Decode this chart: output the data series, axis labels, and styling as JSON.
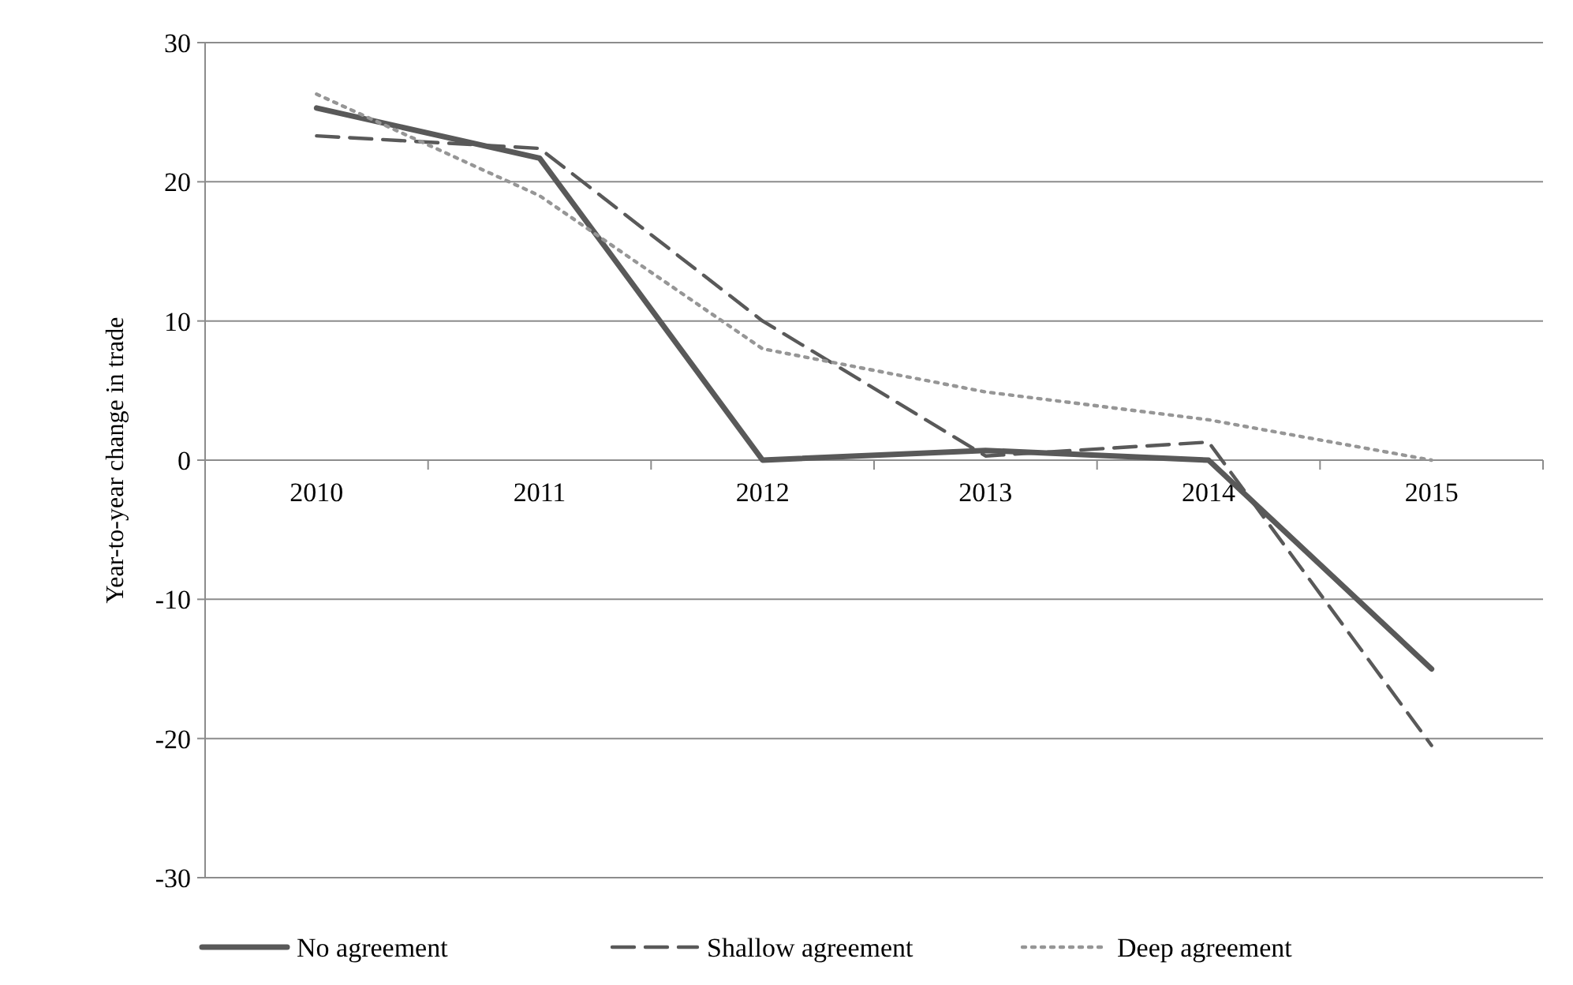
{
  "chart_data": {
    "type": "line",
    "ylabel": "Year-to-year change in trade",
    "categories": [
      "2010",
      "2011",
      "2012",
      "2013",
      "2014",
      "2015"
    ],
    "ylim": [
      -30,
      30
    ],
    "yticks": [
      -30,
      -20,
      -10,
      0,
      10,
      20,
      30
    ],
    "grid": "y",
    "legend": "bottom",
    "series": [
      {
        "name": "No agreement",
        "color": "#595959",
        "line_style": "solid",
        "values": [
          25.3,
          21.7,
          0,
          0.7,
          0,
          -15
        ]
      },
      {
        "name": "Shallow agreement",
        "color": "#595959",
        "line_style": "dashed",
        "values": [
          23.3,
          22.4,
          10,
          0.3,
          1.3,
          -20.5
        ]
      },
      {
        "name": "Deep agreement",
        "color": "#969696",
        "line_style": "dotted",
        "values": [
          26.3,
          19,
          8,
          4.9,
          2.9,
          0
        ]
      }
    ]
  }
}
